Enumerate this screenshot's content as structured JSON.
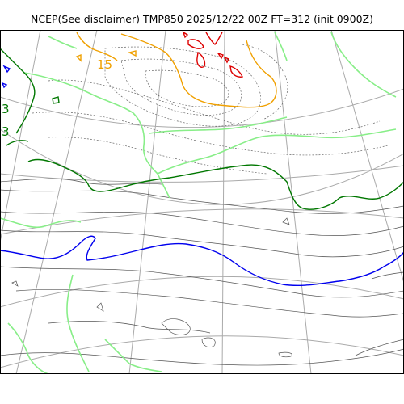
{
  "title": "NCEP(See disclaimer) TMP850 2025/12/22 00Z FT=312 (init 0900Z)",
  "colors": {
    "frame": "#000000",
    "graticule": "#aaaaaa",
    "contour_thin": "#555555",
    "contour_dotted": "#666666",
    "zero_isotherm": "#0000ee",
    "isotherm_dark_green": "#007700",
    "isotherm_light_green": "#88ee88",
    "isotherm_orange": "#f0a000",
    "isotherm_red": "#dd0000"
  },
  "labels": {
    "orange_contour": "15",
    "green_contour_1": "3",
    "green_contour_2": "3"
  }
}
